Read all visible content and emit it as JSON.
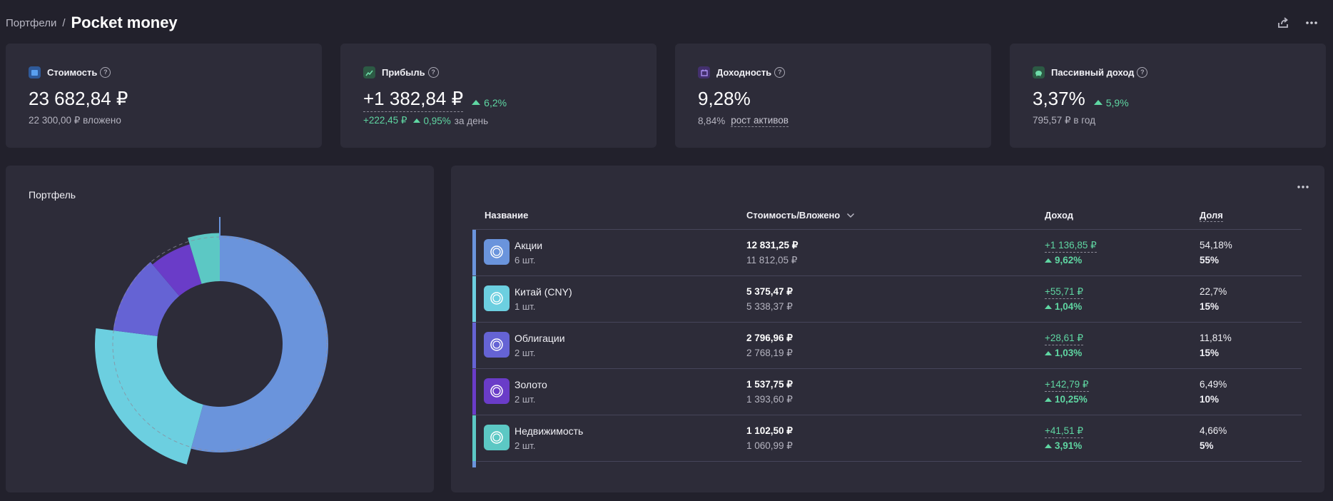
{
  "header": {
    "breadcrumb": "Портфели",
    "separator": "/",
    "title": "Pocket money",
    "share_icon": "share-icon",
    "more_icon": "more-icon"
  },
  "stats": [
    {
      "label": "Стоимость",
      "value": "23 682,84 ₽",
      "sub": "22 300,00 ₽ вложено",
      "icon": "wallet-icon",
      "color": "#4d8fe0"
    },
    {
      "label": "Прибыль",
      "value": "+1 382,84 ₽",
      "value_change": "6,2%",
      "sub_value": "+222,45 ₽",
      "sub_change": "0,95%",
      "sub_suffix": "за день",
      "icon": "chart-line-icon",
      "color": "#4aa57a"
    },
    {
      "label": "Доходность",
      "value": "9,28%",
      "sub_value": "8,84%",
      "sub_link": "рост активов",
      "icon": "calendar-icon",
      "color": "#7e5bd6"
    },
    {
      "label": "Пассивный доход",
      "value": "3,37%",
      "value_change": "5,9%",
      "sub": "795,57 ₽ в год",
      "icon": "piggy-bank-icon",
      "color": "#4aa57a"
    }
  ],
  "portfolio": {
    "title": "Портфель"
  },
  "table": {
    "headers": {
      "name": "Название",
      "value": "Стоимость/Вложено",
      "income": "Доход",
      "share": "Доля"
    },
    "rows": [
      {
        "name": "Акции",
        "qty": "6 шт.",
        "value": "12 831,25 ₽",
        "invested": "11 812,05 ₽",
        "income": "+1 136,85 ₽",
        "income_pct": "9,62%",
        "share_value": "54,18%",
        "share_target": "55%",
        "color": "#6a94dc"
      },
      {
        "name": "Китай (CNY)",
        "qty": "1 шт.",
        "value": "5 375,47 ₽",
        "invested": "5 338,37 ₽",
        "income": "+55,71 ₽",
        "income_pct": "1,04%",
        "share_value": "22,7%",
        "share_target": "15%",
        "color": "#6ccfe0"
      },
      {
        "name": "Облигации",
        "qty": "2 шт.",
        "value": "2 796,96 ₽",
        "invested": "2 768,19 ₽",
        "income": "+28,61 ₽",
        "income_pct": "1,03%",
        "share_value": "11,81%",
        "share_target": "15%",
        "color": "#6563d4"
      },
      {
        "name": "Золото",
        "qty": "2 шт.",
        "value": "1 537,75 ₽",
        "invested": "1 393,60 ₽",
        "income": "+142,79 ₽",
        "income_pct": "10,25%",
        "share_value": "6,49%",
        "share_target": "10%",
        "color": "#6a3cc8"
      },
      {
        "name": "Недвижимость",
        "qty": "2 шт.",
        "value": "1 102,50 ₽",
        "invested": "1 060,99 ₽",
        "income": "+41,51 ₽",
        "income_pct": "3,91%",
        "share_value": "4,66%",
        "share_target": "5%",
        "color": "#5cc8c4"
      }
    ]
  },
  "chart_data": {
    "type": "pie",
    "categories": [
      "Акции",
      "Китай (CNY)",
      "Облигации",
      "Золото",
      "Недвижимость"
    ],
    "values": [
      54.18,
      22.7,
      11.81,
      6.49,
      4.66
    ],
    "targets": [
      55,
      15,
      15,
      10,
      5
    ],
    "colors": [
      "#6a94dc",
      "#6ccfe0",
      "#6563d4",
      "#6a3cc8",
      "#5cc8c4"
    ]
  }
}
